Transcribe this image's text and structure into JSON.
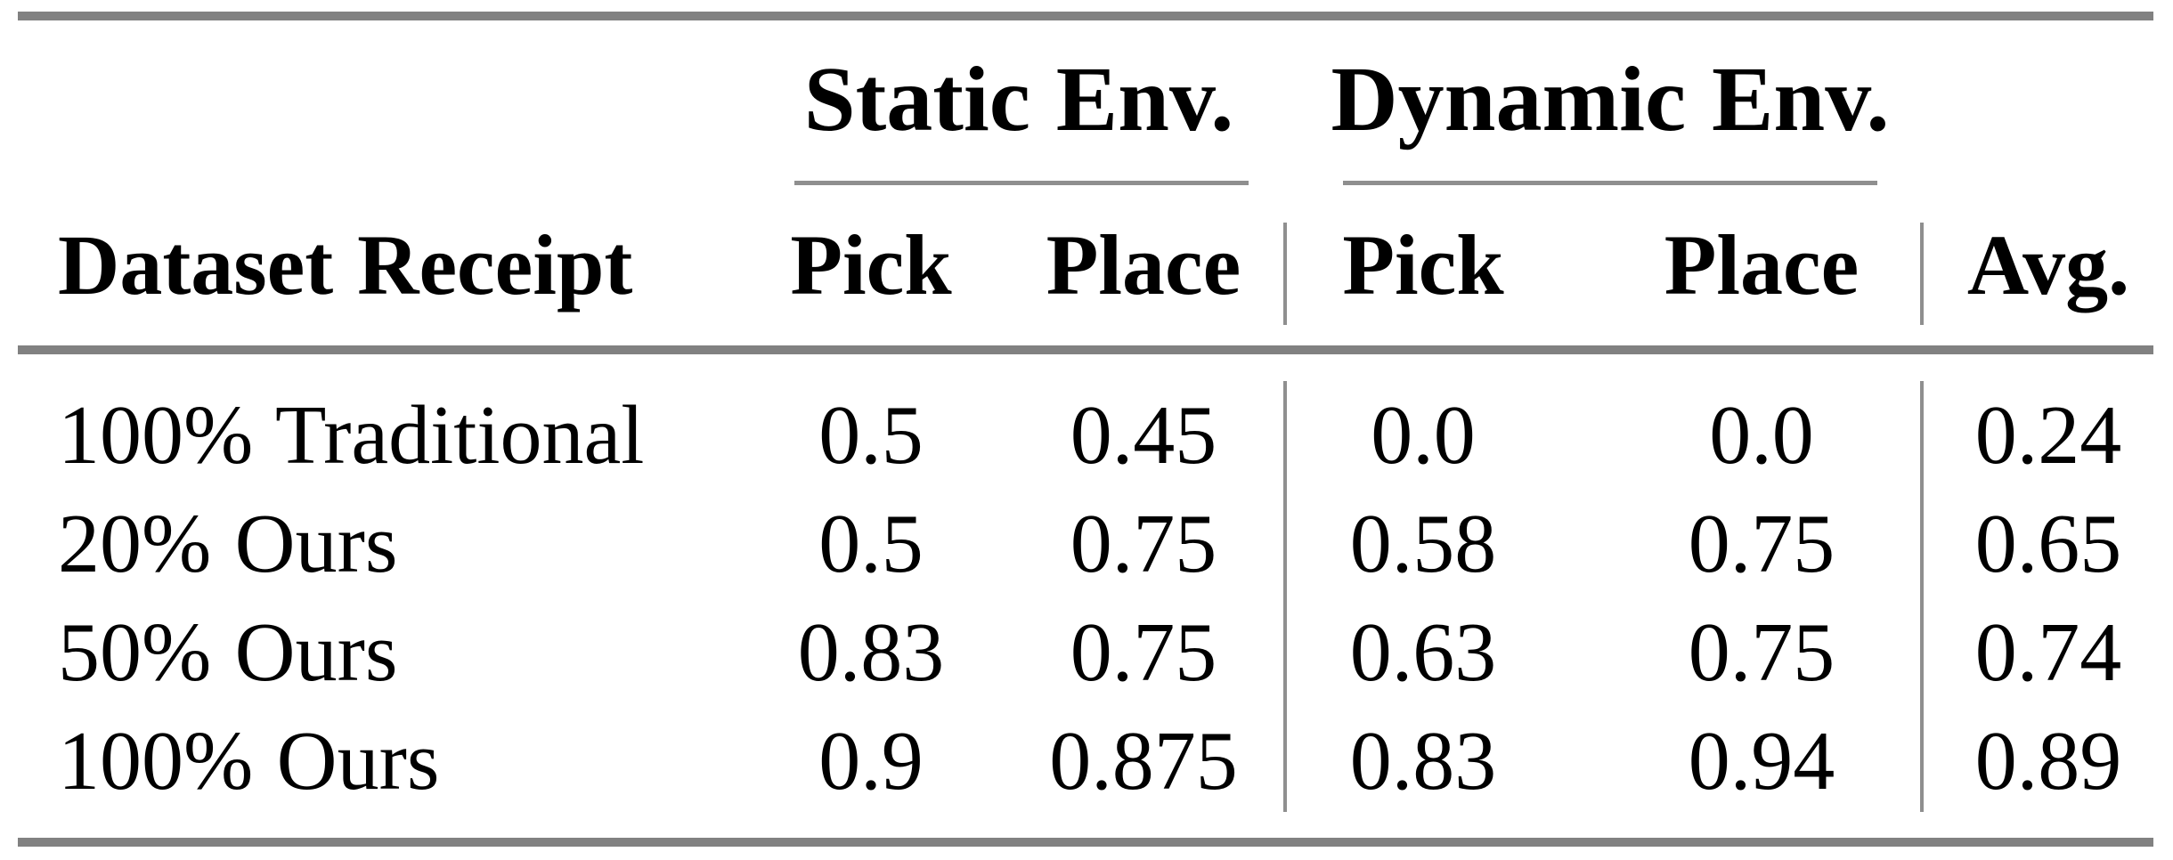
{
  "table": {
    "header": {
      "row_label_col": "Dataset Receipt",
      "groups": [
        {
          "label": "Static Env.",
          "cols": [
            "Pick",
            "Place"
          ]
        },
        {
          "label": "Dynamic Env.",
          "cols": [
            "Pick",
            "Place"
          ]
        }
      ],
      "avg_col": "Avg."
    },
    "rows": [
      {
        "label": "100% Traditional",
        "values": [
          "0.5",
          "0.45",
          "0.0",
          "0.0",
          "0.24"
        ]
      },
      {
        "label": "20% Ours",
        "values": [
          "0.5",
          "0.75",
          "0.58",
          "0.75",
          "0.65"
        ]
      },
      {
        "label": "50% Ours",
        "values": [
          "0.83",
          "0.75",
          "0.63",
          "0.75",
          "0.74"
        ]
      },
      {
        "label": "100% Ours",
        "values": [
          "0.9",
          "0.875",
          "0.83",
          "0.94",
          "0.89"
        ]
      }
    ],
    "colors": {
      "thick_rule": "#818181",
      "thin_rule": "#8f8f8f",
      "text": "#000000",
      "background": "#ffffff"
    }
  }
}
